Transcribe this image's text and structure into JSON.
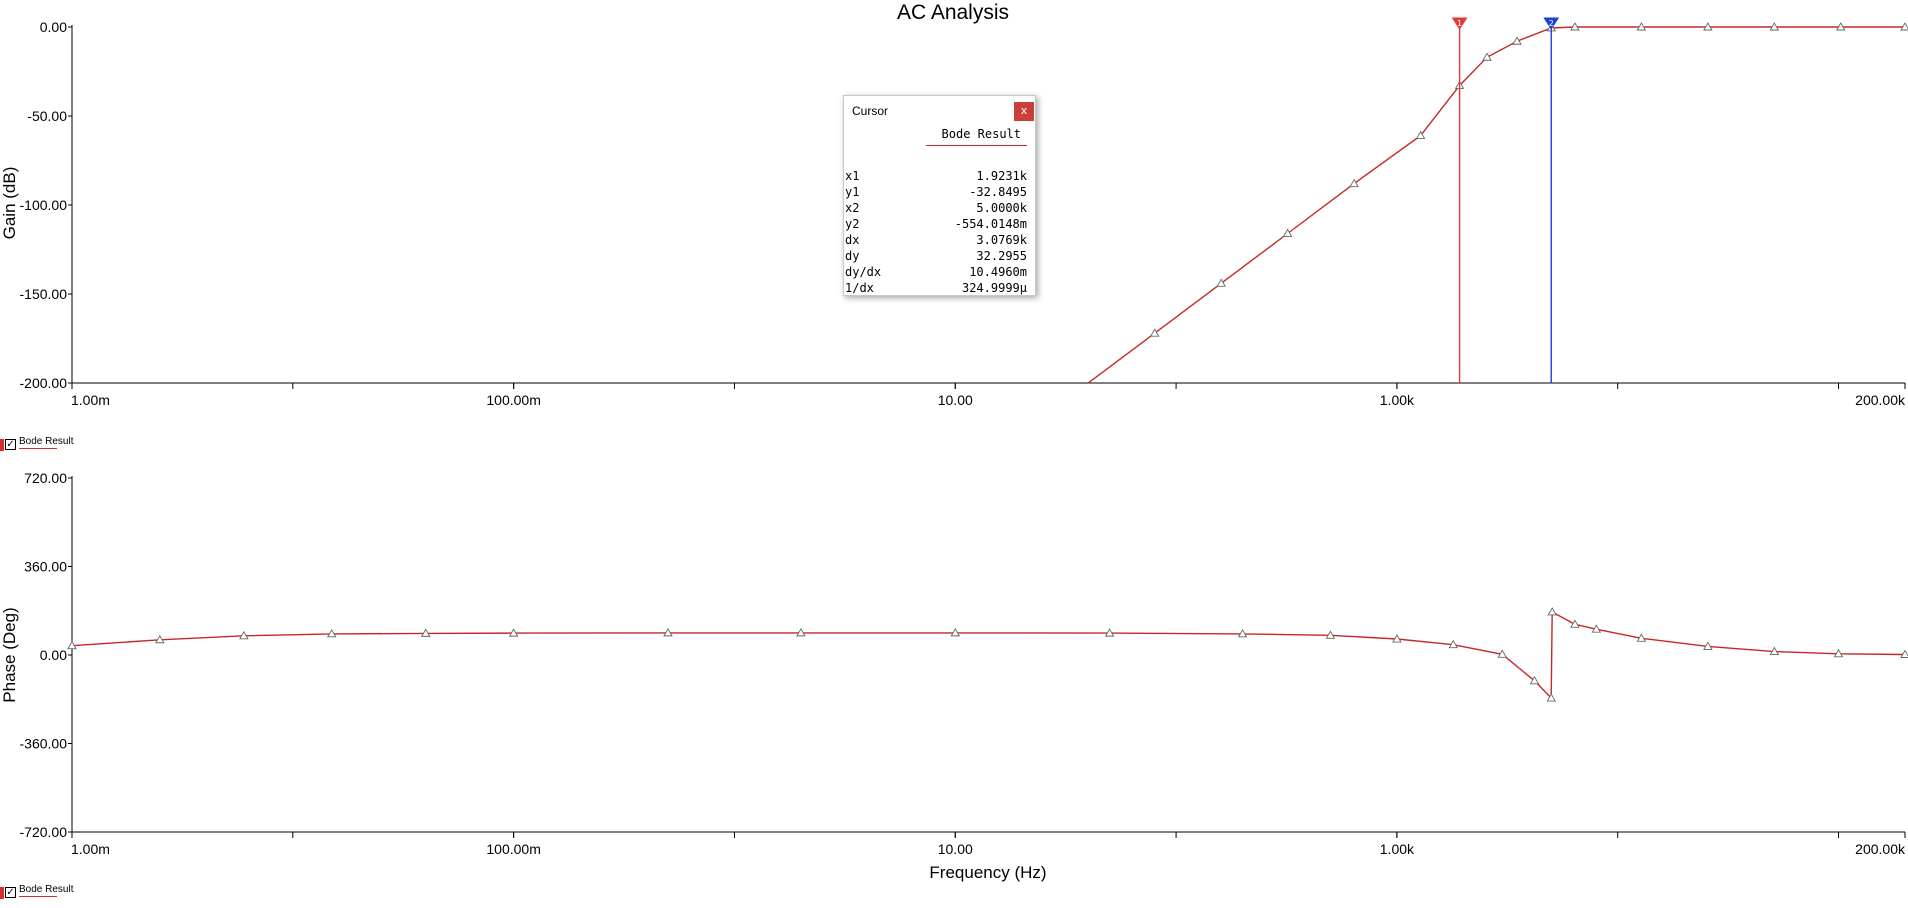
{
  "chart_data": [
    {
      "type": "line",
      "title": "AC Analysis",
      "xlabel": "",
      "ylabel": "Gain (dB)",
      "x_scale": "log",
      "xlim": [
        0.001,
        200000
      ],
      "ylim": [
        -200,
        0
      ],
      "x_ticks": [
        "1.00m",
        "100.00m",
        "10.00",
        "1.00k",
        "200.00k"
      ],
      "y_ticks": [
        "0.00",
        "-50.00",
        "-100.00",
        "-150.00",
        "-200.00"
      ],
      "series": [
        {
          "name": "Bode Result",
          "color": "#c62828",
          "marker": "triangle-open",
          "x": [
            40,
            80,
            160,
            320,
            640,
            1280,
            1923.1,
            2560,
            3500,
            5000,
            6400,
            12800,
            25600,
            51200,
            102400,
            200000
          ],
          "y": [
            -200,
            -172,
            -144,
            -116,
            -88,
            -61,
            -32.85,
            -17,
            -8,
            -0.554,
            0,
            0,
            0,
            0,
            0,
            0
          ]
        }
      ],
      "cursors": [
        {
          "x": 1923.1,
          "color": "#e53935",
          "label": "1"
        },
        {
          "x": 5000,
          "color": "#1e3fd6",
          "label": "2"
        }
      ],
      "grid": false
    },
    {
      "type": "line",
      "title": "",
      "xlabel": "Frequency (Hz)",
      "ylabel": "Phase (Deg)",
      "x_scale": "log",
      "xlim": [
        0.001,
        200000
      ],
      "ylim": [
        -720,
        720
      ],
      "x_ticks": [
        "1.00m",
        "100.00m",
        "10.00",
        "1.00k",
        "200.00k"
      ],
      "y_ticks": [
        "720.00",
        "360.00",
        "0.00",
        "-360.00",
        "-720.00"
      ],
      "series": [
        {
          "name": "Bode Result",
          "color": "#c62828",
          "marker": "triangle-open",
          "x": [
            0.001,
            0.0025,
            0.006,
            0.015,
            0.04,
            0.1,
            0.5,
            2,
            10,
            50,
            200,
            500,
            1000,
            1800,
            3000,
            4200,
            5000,
            5050,
            6400,
            8000,
            12800,
            25600,
            51200,
            100000,
            200000
          ],
          "y": [
            38,
            62,
            78,
            86,
            88,
            89,
            90,
            90,
            90,
            89,
            86,
            80,
            65,
            42,
            3,
            -105,
            -175,
            175,
            125,
            105,
            68,
            35,
            14,
            5,
            2
          ]
        }
      ],
      "grid": false
    }
  ],
  "legend": [
    {
      "label": "Bode Result",
      "checked": "✓"
    },
    {
      "label": "Bode Result",
      "checked": "✓"
    }
  ],
  "cursor_window": {
    "title": "Cursor",
    "close_label": "x",
    "series_label": "Bode Result",
    "rows": [
      {
        "label": "x1",
        "value": "1.9231k"
      },
      {
        "label": "y1",
        "value": "-32.8495"
      },
      {
        "label": "x2",
        "value": "5.0000k"
      },
      {
        "label": "y2",
        "value": "-554.0148m"
      },
      {
        "label": "dx",
        "value": "3.0769k"
      },
      {
        "label": "dy",
        "value": "32.2955"
      },
      {
        "label": "dy/dx",
        "value": "10.4960m"
      },
      {
        "label": "1/dx",
        "value": "324.9999µ"
      }
    ]
  }
}
